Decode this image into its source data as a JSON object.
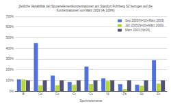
{
  "chart_data": {
    "type": "bar",
    "title": "Zeitliche Variabilität der Spurenelementkonzentrationen am Standort Fuhrberg S2 bezogen auf die\nKonzentrationen von März 2003 (≙ 100%)",
    "xlabel": "Spurenelemente",
    "categories": [
      "B",
      "Cd",
      "Co",
      "Cr",
      "Cu",
      "Ni",
      "Pb",
      "Sb",
      "Zn"
    ],
    "series": [
      {
        "name": "Sep 2003(N=10+März 2003)",
        "values": [
          110,
          450,
          145,
          85,
          230,
          120,
          65,
          60,
          290
        ]
      },
      {
        "name": "Jan 2005(N=20+März 2003)",
        "values": [
          108,
          55,
          55,
          60,
          65,
          95,
          20,
          50,
          70
        ]
      },
      {
        "name": "März 2003 (N=26)",
        "values": [
          100,
          100,
          100,
          100,
          100,
          100,
          100,
          100,
          100
        ]
      }
    ],
    "ylim": [
      0,
      700
    ],
    "yticks": [
      {
        "value": 0,
        "label": "0%"
      },
      {
        "value": 100,
        "label": "100%"
      },
      {
        "value": 200,
        "label": "200%"
      },
      {
        "value": 300,
        "label": "300%"
      },
      {
        "value": 400,
        "label": "400%"
      },
      {
        "value": 500,
        "label": "500%"
      },
      {
        "value": 600,
        "label": "600%"
      },
      {
        "value": 700,
        "label": "700%"
      }
    ],
    "grid": true,
    "legend": "upper right"
  }
}
